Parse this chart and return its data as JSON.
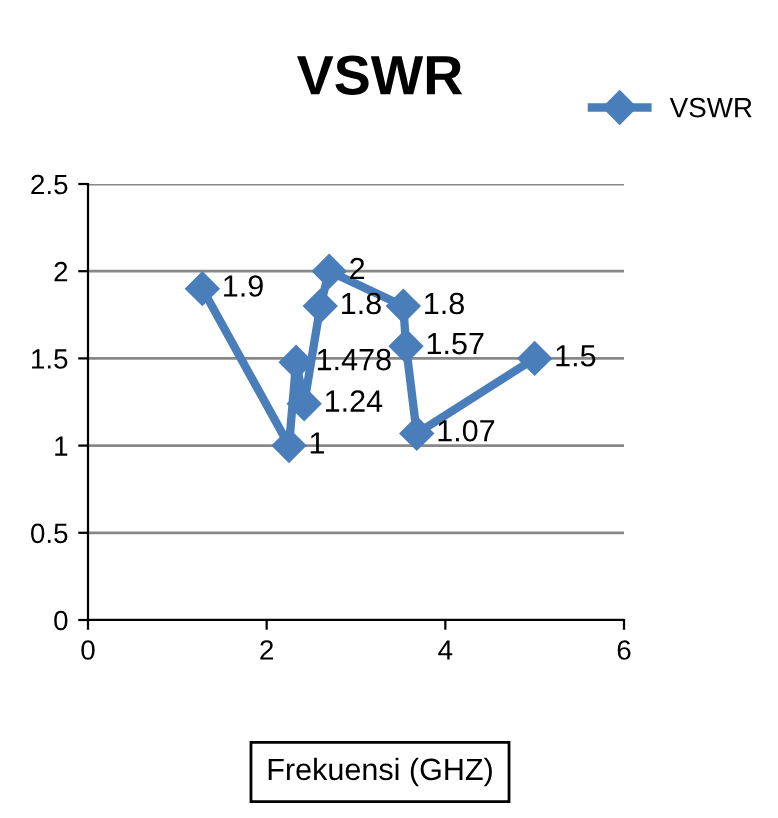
{
  "chart_data": {
    "type": "line",
    "title": "VSWR",
    "xlabel": "Frekuensi (GHZ)",
    "x": [
      1.28,
      2.25,
      2.33,
      2.42,
      2.6,
      2.7,
      3.53,
      3.56,
      3.68,
      5.0
    ],
    "series": [
      {
        "name": "VSWR",
        "color": "#4a7ebb",
        "values": [
          1.9,
          1,
          1.478,
          1.24,
          1.8,
          2,
          1.8,
          1.57,
          1.07,
          1.5
        ]
      }
    ],
    "xlim": [
      0,
      6
    ],
    "xticks": [
      0,
      2,
      4,
      6
    ],
    "ylim": [
      0,
      2.5
    ],
    "yticks": [
      0,
      0.5,
      1,
      1.5,
      2,
      2.5
    ],
    "grid": "y",
    "legend": "top right",
    "marker": "diamond",
    "line_style": "solid",
    "data_labels": true
  }
}
